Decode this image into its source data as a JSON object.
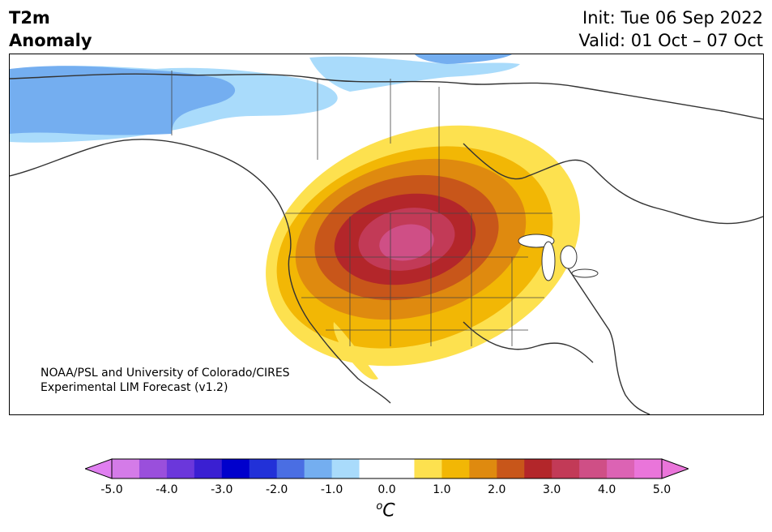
{
  "title": {
    "left_line1": "T2m",
    "left_line2": "Anomaly",
    "right_line1": "Init: Tue 06 Sep 2022",
    "right_line2": "Valid: 01 Oct – 07 Oct"
  },
  "credit": {
    "line1": "NOAA/PSL and University of Colorado/CIRES",
    "line2": "Experimental LIM Forecast (v1.2)"
  },
  "colorbar": {
    "units_base": "C",
    "units_sup": "o",
    "tick_labels": [
      "-5.0",
      "-4.0",
      "-3.0",
      "-2.0",
      "-1.0",
      "0.0",
      "1.0",
      "2.0",
      "3.0",
      "4.0",
      "5.0"
    ],
    "colors": [
      "#d47be8",
      "#9a4fdc",
      "#6b37db",
      "#3a1fd2",
      "#0000cc",
      "#2231d8",
      "#4a6ee3",
      "#74aef0",
      "#a9dbfb",
      "#ffffff",
      "#ffffff",
      "#fde14f",
      "#f2b705",
      "#df8a0f",
      "#c8561a",
      "#b3262a",
      "#c23a57",
      "#cf4f86",
      "#dc63b4",
      "#ea75da"
    ],
    "min_arrow_color": "#e07ff0",
    "max_arrow_color": "#ea75da"
  },
  "map": {
    "region": "North America",
    "variable": "2-m temperature anomaly",
    "units": "°C"
  }
}
